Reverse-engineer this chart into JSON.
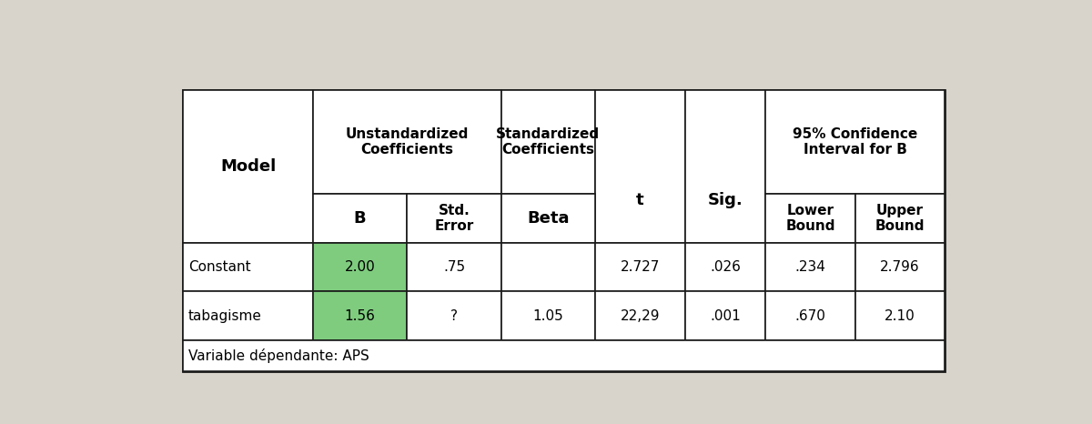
{
  "background_color": "#d8d4cc",
  "table_bg": "#ffffff",
  "highlight_color": "#7FCC7F",
  "text_color": "#000000",
  "border_color": "#1a1a1a",
  "data_rows": [
    [
      "Constant",
      "2.00",
      ".75",
      "",
      "2.727",
      ".026",
      ".234",
      "2.796"
    ],
    [
      "tabagisme",
      "1.56",
      "?",
      "1.05",
      "22,29",
      ".001",
      ".670",
      "2.10"
    ]
  ],
  "footer": "Variable dépendante: APS",
  "fig_width": 12.0,
  "fig_height": 4.66
}
